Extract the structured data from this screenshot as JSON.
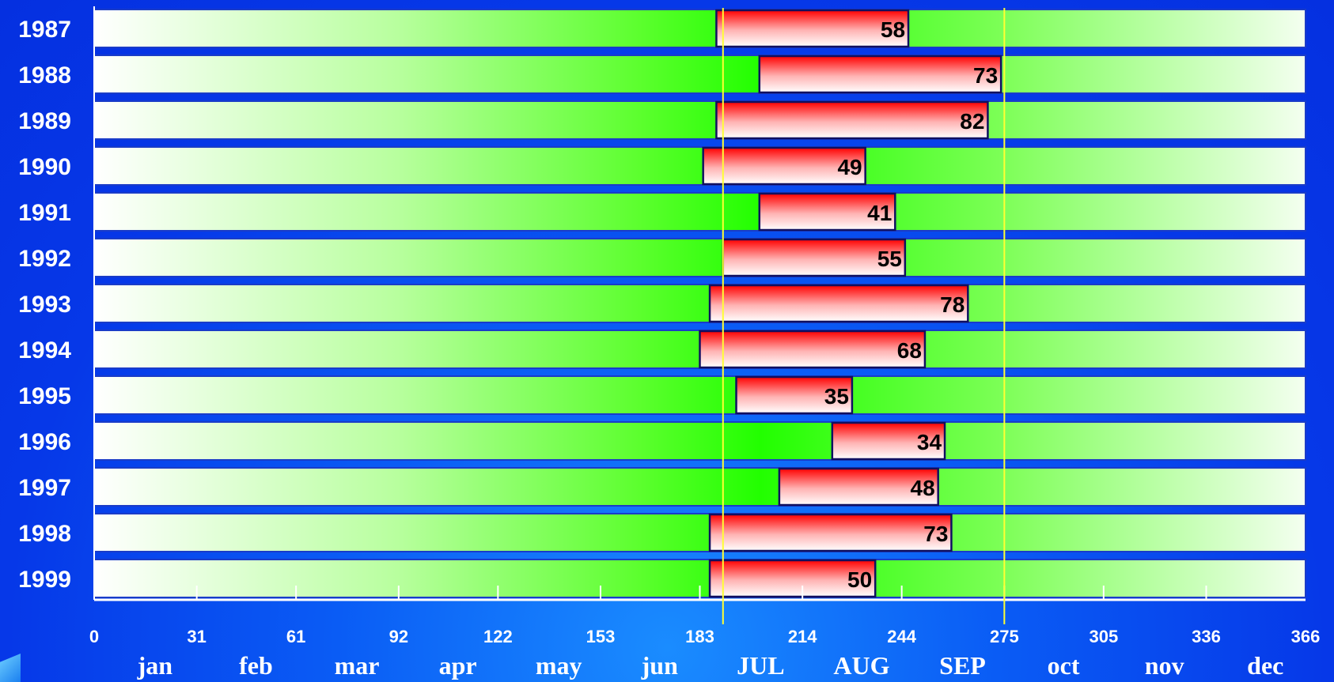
{
  "chart_data": {
    "type": "bar",
    "subtype": "floating-horizontal-timeline",
    "title": "",
    "xlabel": "",
    "ylabel": "",
    "xlim": [
      0,
      366
    ],
    "x_ticks": [
      0,
      31,
      61,
      92,
      122,
      153,
      183,
      214,
      244,
      275,
      305,
      336,
      366
    ],
    "months": [
      "jan",
      "feb",
      "mar",
      "apr",
      "may",
      "jun",
      "JUL",
      "AUG",
      "SEP",
      "oct",
      "nov",
      "dec"
    ],
    "reference_lines": [
      190,
      275
    ],
    "categories": [
      "1987",
      "1988",
      "1989",
      "1990",
      "1991",
      "1992",
      "1993",
      "1994",
      "1995",
      "1996",
      "1997",
      "1998",
      "1999"
    ],
    "series": [
      {
        "start": [
          188,
          201,
          188,
          184,
          201,
          190,
          186,
          183,
          194,
          223,
          207,
          186,
          186
        ],
        "duration": [
          58,
          73,
          82,
          49,
          41,
          55,
          78,
          68,
          35,
          34,
          48,
          73,
          50
        ]
      }
    ],
    "colors": {
      "background": "#0a4cf0",
      "row_gradient_edge": "#ffffff",
      "row_gradient_center": "#22ff00",
      "bar_top": "#ff0000",
      "bar_bottom": "#ffffff",
      "reference_line": "#ffff33"
    },
    "grid": false,
    "legend": "none"
  }
}
